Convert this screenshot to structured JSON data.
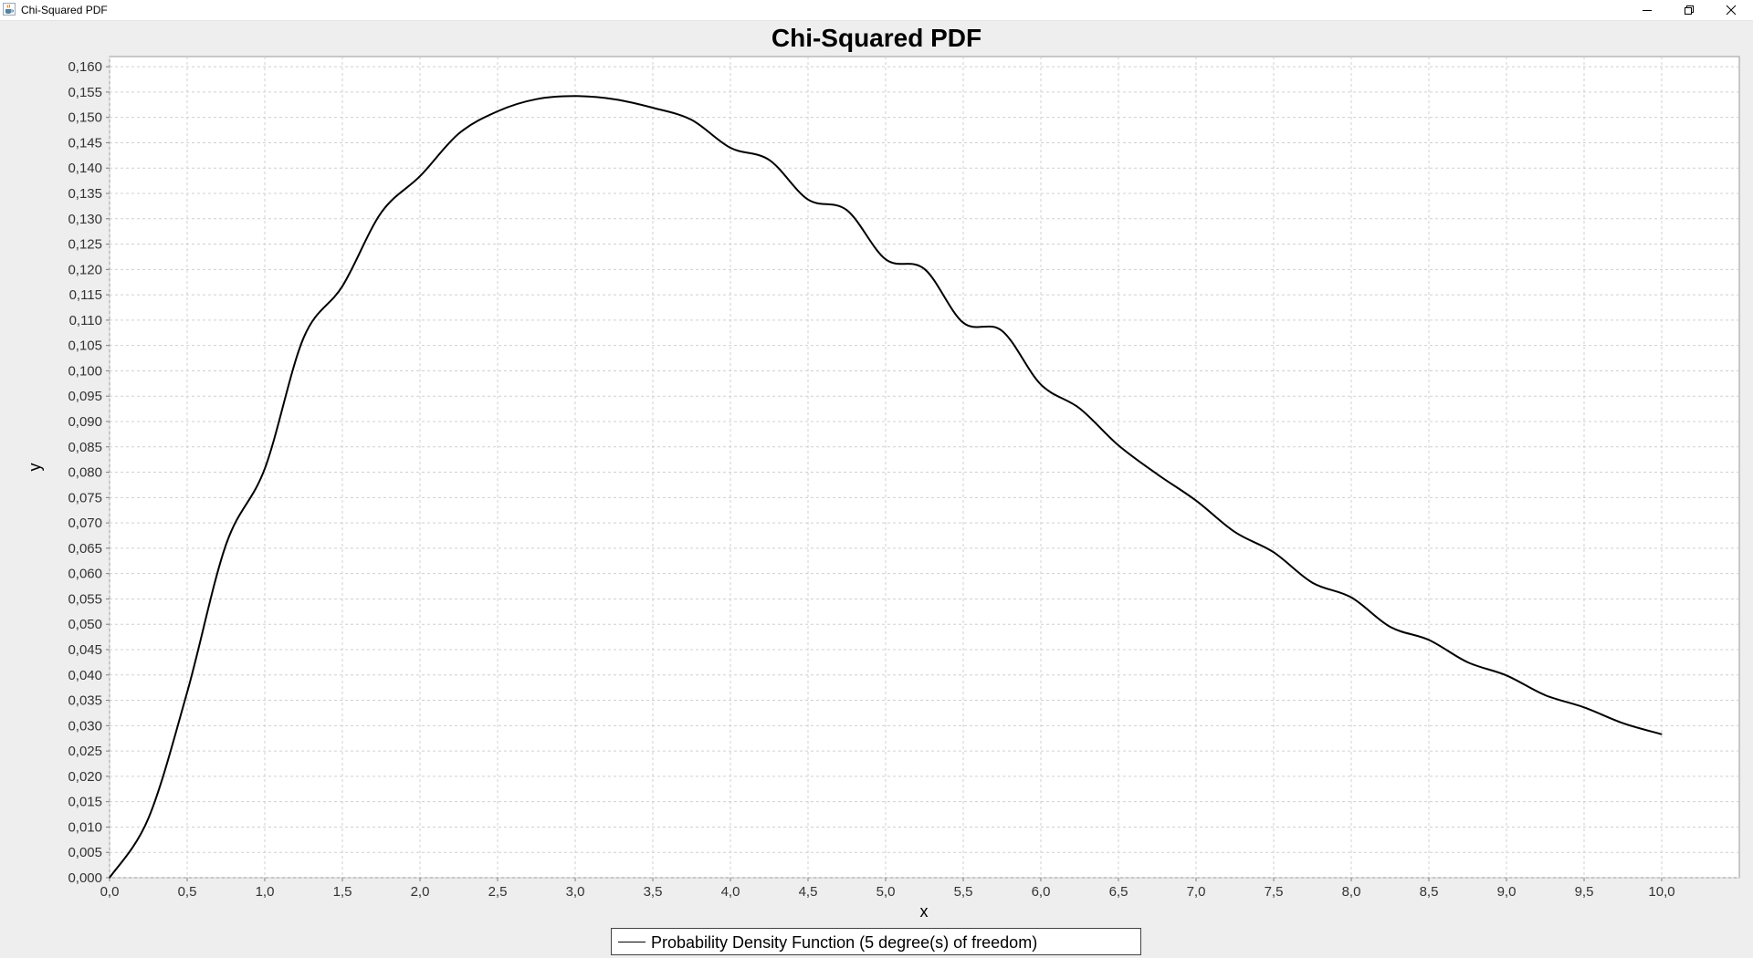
{
  "window": {
    "title": "Chi-Squared PDF"
  },
  "icons": {
    "app": "java-cup-icon",
    "minimize": "minimize-icon",
    "restore": "restore-icon",
    "close": "close-icon"
  },
  "chart_data": {
    "type": "line",
    "title": "Chi-Squared PDF",
    "xlabel": "x",
    "ylabel": "y",
    "xlim": [
      0.0,
      10.5
    ],
    "ylim": [
      0.0,
      0.162
    ],
    "x_ticks": [
      "0,0",
      "0,5",
      "1,0",
      "1,5",
      "2,0",
      "2,5",
      "3,0",
      "3,5",
      "4,0",
      "4,5",
      "5,0",
      "5,5",
      "6,0",
      "6,5",
      "7,0",
      "7,5",
      "8,0",
      "8,5",
      "9,0",
      "9,5",
      "10,0"
    ],
    "y_ticks": [
      "0,000",
      "0,005",
      "0,010",
      "0,015",
      "0,020",
      "0,025",
      "0,030",
      "0,035",
      "0,040",
      "0,045",
      "0,050",
      "0,055",
      "0,060",
      "0,065",
      "0,070",
      "0,075",
      "0,080",
      "0,085",
      "0,090",
      "0,095",
      "0,100",
      "0,105",
      "0,110",
      "0,115",
      "0,120",
      "0,125",
      "0,130",
      "0,135",
      "0,140",
      "0,145",
      "0,150",
      "0,155",
      "0,160"
    ],
    "grid": true,
    "legend_position": "bottom-center",
    "series": [
      {
        "name": "Probability Density Function (5 degree(s) of freedom)",
        "color": "#000000",
        "x": [
          0.0,
          0.25,
          0.5,
          0.75,
          1.0,
          1.25,
          1.5,
          1.75,
          2.0,
          2.25,
          2.5,
          2.75,
          3.0,
          3.25,
          3.5,
          3.75,
          4.0,
          4.25,
          4.5,
          4.75,
          5.0,
          5.25,
          5.5,
          5.75,
          6.0,
          6.25,
          6.5,
          6.75,
          7.0,
          7.25,
          7.5,
          7.75,
          8.0,
          8.25,
          8.5,
          8.75,
          9.0,
          9.25,
          9.5,
          9.75,
          10.0
        ],
        "y": [
          0.0,
          0.0117,
          0.0366,
          0.0657,
          0.0807,
          0.1065,
          0.1167,
          0.1312,
          0.1384,
          0.1468,
          0.1512,
          0.1536,
          0.1542,
          0.1536,
          0.1519,
          0.1495,
          0.144,
          0.1416,
          0.1338,
          0.1317,
          0.122,
          0.1201,
          0.1095,
          0.1079,
          0.0973,
          0.0926,
          0.0853,
          0.0796,
          0.0744,
          0.0682,
          0.0642,
          0.0582,
          0.0553,
          0.0495,
          0.0469,
          0.0425,
          0.0399,
          0.036,
          0.0336,
          0.0305,
          0.0283
        ]
      }
    ]
  }
}
